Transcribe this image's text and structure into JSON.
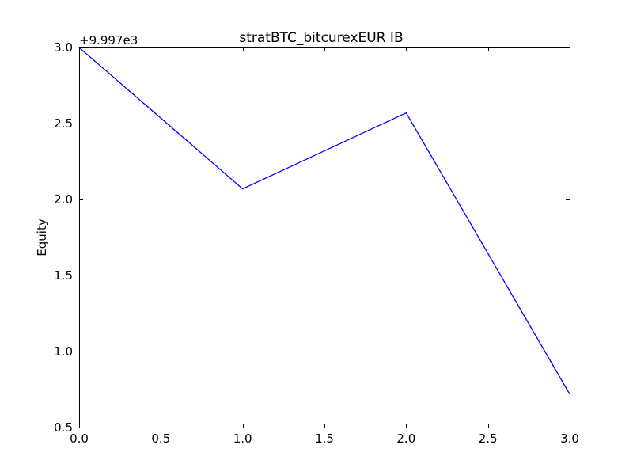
{
  "chart_data": {
    "type": "line",
    "title": "stratBTC_bitcurexEUR IB",
    "xlabel": "",
    "ylabel": "Equity",
    "y_offset_label": "+9.997e3",
    "xlim": [
      0.0,
      3.0
    ],
    "ylim": [
      0.5,
      3.0
    ],
    "x_ticks": [
      0.0,
      0.5,
      1.0,
      1.5,
      2.0,
      2.5,
      3.0
    ],
    "x_tick_labels": [
      "0.0",
      "0.5",
      "1.0",
      "1.5",
      "2.0",
      "2.5",
      "3.0"
    ],
    "y_ticks": [
      0.5,
      1.0,
      1.5,
      2.0,
      2.5,
      3.0
    ],
    "y_tick_labels": [
      "0.5",
      "1.0",
      "1.5",
      "2.0",
      "2.5",
      "3.0"
    ],
    "grid": false,
    "series": [
      {
        "color": "#0000ff",
        "x": [
          0,
          1,
          2,
          3
        ],
        "y": [
          3.0,
          2.07,
          2.57,
          0.72
        ]
      }
    ]
  }
}
